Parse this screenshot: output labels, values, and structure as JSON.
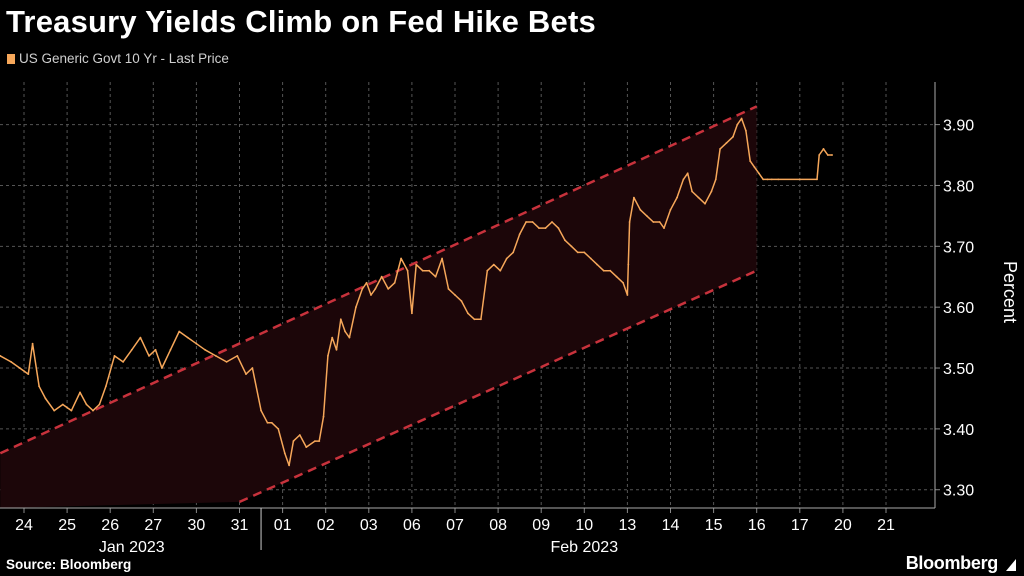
{
  "header": {
    "title": "Treasury Yields Climb on Fed Hike Bets"
  },
  "footer": {
    "source": "Source: Bloomberg",
    "brand": "Bloomberg"
  },
  "colors": {
    "background": "#000000",
    "series": "#f6a75a",
    "channel": "#c8323c",
    "channel_fill": "#1c0609",
    "grid": "#555555",
    "text": "#ffffff"
  },
  "chart_data": {
    "type": "line",
    "title": "Treasury Yields Climb on Fed Hike Bets",
    "ylabel": "Percent",
    "xlabel": "",
    "ylim": [
      3.27,
      3.97
    ],
    "yticks": [
      3.3,
      3.4,
      3.5,
      3.6,
      3.7,
      3.8,
      3.9
    ],
    "ytick_labels": [
      "3.30",
      "3.40",
      "3.50",
      "3.60",
      "3.70",
      "3.80",
      "3.90"
    ],
    "categories": [
      "24",
      "25",
      "26",
      "27",
      "30",
      "31",
      "01",
      "02",
      "03",
      "06",
      "07",
      "08",
      "09",
      "10",
      "13",
      "14",
      "15",
      "16",
      "17",
      "20",
      "21"
    ],
    "month_labels": [
      {
        "label": "Jan 2023",
        "from": 0,
        "to": 5
      },
      {
        "label": "Feb 2023",
        "from": 6,
        "to": 20
      }
    ],
    "grid": true,
    "legend": "top-left",
    "series": [
      {
        "name": "US Generic Govt 10 Yr - Last Price",
        "x": [
          -0.55,
          -0.3,
          -0.1,
          0.1,
          0.2,
          0.35,
          0.5,
          0.7,
          0.9,
          1.1,
          1.3,
          1.45,
          1.6,
          1.75,
          1.9,
          2.1,
          2.3,
          2.5,
          2.7,
          2.9,
          3.05,
          3.2,
          3.4,
          3.6,
          3.8,
          4.0,
          4.2,
          4.45,
          4.7,
          4.95,
          5.15,
          5.3,
          5.5,
          5.65,
          5.75,
          5.9,
          6.05,
          6.15,
          6.25,
          6.4,
          6.55,
          6.75,
          6.85,
          6.95,
          7.05,
          7.15,
          7.25,
          7.35,
          7.45,
          7.55,
          7.7,
          7.85,
          7.95,
          8.05,
          8.15,
          8.3,
          8.45,
          8.6,
          8.75,
          8.9,
          9.0,
          9.1,
          9.25,
          9.4,
          9.55,
          9.7,
          9.85,
          10.0,
          10.15,
          10.3,
          10.45,
          10.6,
          10.75,
          10.9,
          11.05,
          11.2,
          11.35,
          11.5,
          11.65,
          11.8,
          11.95,
          12.1,
          12.25,
          12.4,
          12.55,
          12.7,
          12.85,
          13.0,
          13.15,
          13.3,
          13.45,
          13.6,
          13.75,
          13.9,
          14.0,
          14.02,
          14.05,
          14.15,
          14.3,
          14.45,
          14.6,
          14.75,
          14.85,
          15.0,
          15.15,
          15.3,
          15.4,
          15.5,
          15.65,
          15.8,
          15.95,
          16.05,
          16.15,
          16.3,
          16.45,
          16.55,
          16.65,
          16.75,
          16.85,
          16.95,
          17.05,
          17.15,
          17.25,
          17.35,
          17.5,
          18.4,
          18.45,
          18.55,
          18.65,
          18.75
        ],
        "values": [
          3.52,
          3.51,
          3.5,
          3.49,
          3.54,
          3.47,
          3.45,
          3.43,
          3.44,
          3.43,
          3.46,
          3.44,
          3.43,
          3.44,
          3.47,
          3.52,
          3.51,
          3.53,
          3.55,
          3.52,
          3.53,
          3.5,
          3.53,
          3.56,
          3.55,
          3.54,
          3.53,
          3.52,
          3.51,
          3.52,
          3.49,
          3.5,
          3.43,
          3.41,
          3.41,
          3.4,
          3.36,
          3.34,
          3.38,
          3.39,
          3.37,
          3.38,
          3.38,
          3.42,
          3.52,
          3.55,
          3.53,
          3.58,
          3.56,
          3.55,
          3.6,
          3.63,
          3.64,
          3.62,
          3.63,
          3.65,
          3.63,
          3.64,
          3.68,
          3.66,
          3.59,
          3.67,
          3.66,
          3.66,
          3.65,
          3.68,
          3.63,
          3.62,
          3.61,
          3.59,
          3.58,
          3.58,
          3.66,
          3.67,
          3.66,
          3.68,
          3.69,
          3.72,
          3.74,
          3.74,
          3.73,
          3.73,
          3.74,
          3.73,
          3.71,
          3.7,
          3.69,
          3.69,
          3.68,
          3.67,
          3.66,
          3.66,
          3.65,
          3.64,
          3.62,
          3.67,
          3.74,
          3.78,
          3.76,
          3.75,
          3.74,
          3.74,
          3.73,
          3.76,
          3.78,
          3.81,
          3.82,
          3.79,
          3.78,
          3.77,
          3.79,
          3.81,
          3.86,
          3.87,
          3.88,
          3.9,
          3.91,
          3.89,
          3.84,
          3.83,
          3.82,
          3.81,
          3.81,
          3.81,
          3.81,
          3.81,
          3.85,
          3.86,
          3.85,
          3.85
        ]
      }
    ],
    "annotations": [
      {
        "type": "trend-channel",
        "upper": {
          "x": [
            -0.55,
            17.0
          ],
          "y": [
            3.36,
            3.93
          ]
        },
        "lower": {
          "x": [
            5.0,
            17.0
          ],
          "y": [
            3.28,
            3.66
          ]
        },
        "style": "dashed"
      }
    ]
  }
}
